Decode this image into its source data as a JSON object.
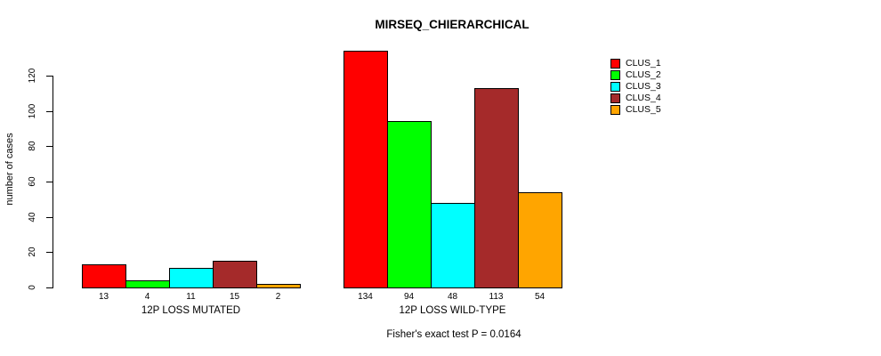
{
  "chart_data": {
    "type": "bar",
    "title": "MIRSEQ_CHIERARCHICAL",
    "ylabel": "number of cases",
    "xlabel": "",
    "ylim": [
      0,
      140
    ],
    "y_ticks": [
      0,
      20,
      40,
      60,
      80,
      100,
      120
    ],
    "grid": false,
    "legend_position": "top-right",
    "categories": [
      "12P LOSS MUTATED",
      "12P LOSS WILD-TYPE"
    ],
    "series": [
      {
        "name": "CLUS_1",
        "color": "#FF0000",
        "values": [
          13,
          134
        ]
      },
      {
        "name": "CLUS_2",
        "color": "#00FF00",
        "values": [
          4,
          94
        ]
      },
      {
        "name": "CLUS_3",
        "color": "#00FFFF",
        "values": [
          11,
          48
        ]
      },
      {
        "name": "CLUS_4",
        "color": "#A52A2A",
        "values": [
          15,
          113
        ]
      },
      {
        "name": "CLUS_5",
        "color": "#FFA500",
        "values": [
          2,
          54
        ]
      }
    ],
    "bar_value_labels": [
      [
        13,
        4,
        11,
        15,
        2
      ],
      [
        134,
        94,
        48,
        113,
        54
      ]
    ],
    "annotation": "Fisher's exact test P = 0.0164"
  }
}
